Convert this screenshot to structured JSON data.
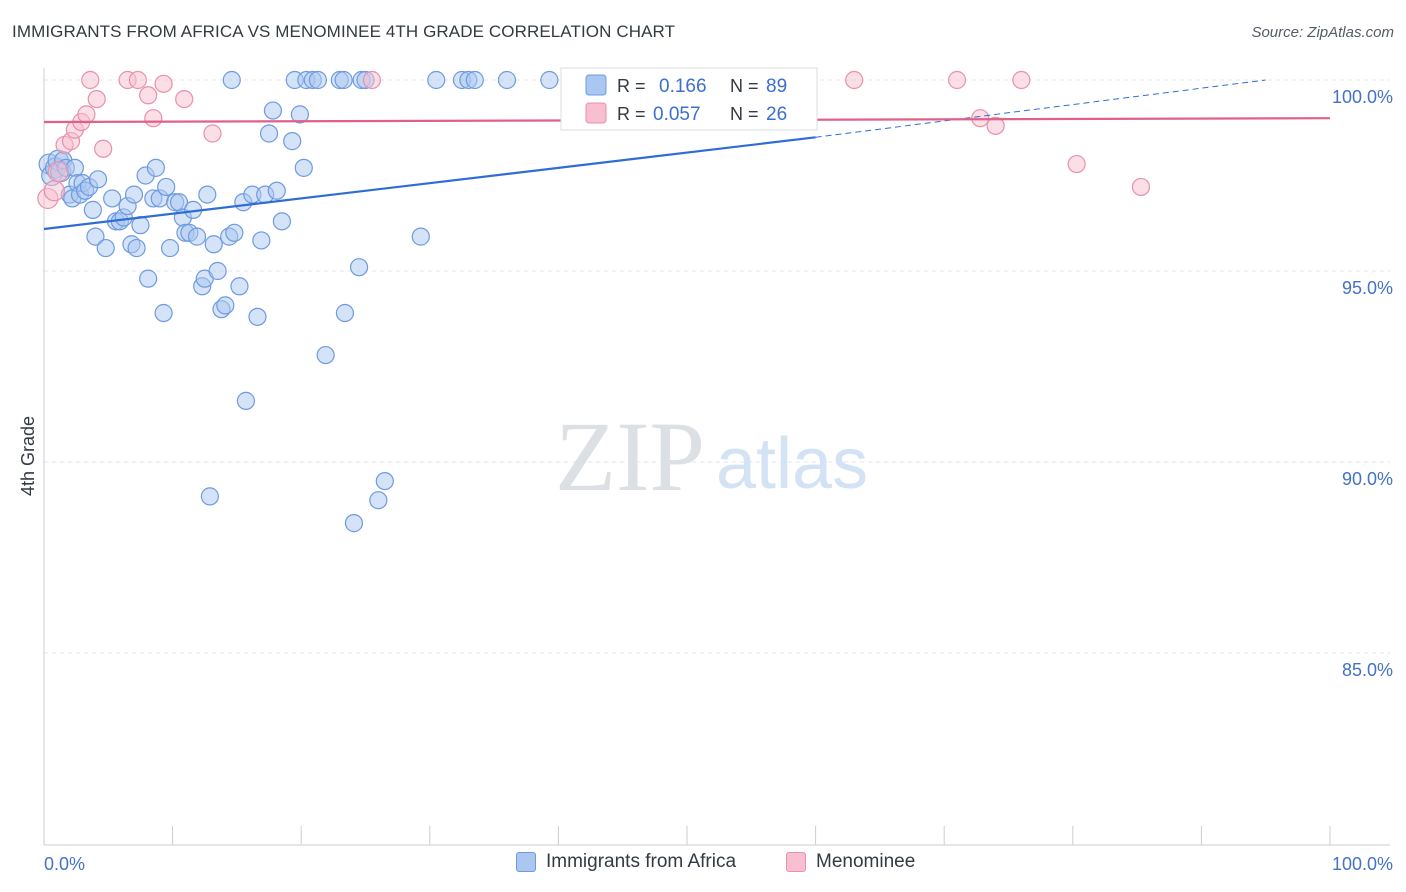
{
  "header": {
    "title": "IMMIGRANTS FROM AFRICA VS MENOMINEE 4TH GRADE CORRELATION CHART",
    "source": "Source: ZipAtlas.com"
  },
  "watermark": {
    "zip": "ZIP",
    "atlas": "atlas"
  },
  "colors": {
    "blue_fill": "#a9c7f0",
    "blue_stroke": "#6f9ae0",
    "blue_line": "#2e6ed4",
    "pink_fill": "#f7bfd0",
    "pink_stroke": "#ea8fac",
    "pink_line": "#e0608a",
    "label_blue": "#4472c4",
    "grid": "#e3e6ea"
  },
  "chart_data": {
    "type": "scatter",
    "title": "IMMIGRANTS FROM AFRICA VS MENOMINEE 4TH GRADE CORRELATION CHART",
    "xlabel": "",
    "ylabel": "4th Grade",
    "xlim": [
      0,
      100
    ],
    "ylim": [
      80.5,
      101.0
    ],
    "x_tick_labels": [
      "0.0%",
      "100.0%"
    ],
    "y_ticks": [
      100,
      95,
      90,
      85
    ],
    "y_tick_labels": [
      "100.0%",
      "95.0%",
      "90.0%",
      "85.0%"
    ],
    "legend": [
      {
        "name": "Immigrants from Africa",
        "r_label": "R =",
        "r": "0.166",
        "n_label": "N =",
        "n": "89"
      },
      {
        "name": "Menominee",
        "r_label": "R =",
        "r": "0.057",
        "n_label": "N =",
        "n": "26"
      }
    ],
    "series": [
      {
        "name": "Immigrants from Africa",
        "trend": {
          "x0": 0,
          "y0": 96.1,
          "x1": 60,
          "y1": 98.5,
          "dash_to": 95,
          "dash_y": 100.0
        },
        "points": [
          [
            0.4,
            97.8
          ],
          [
            0.6,
            97.5
          ],
          [
            0.9,
            97.7
          ],
          [
            1.1,
            97.9
          ],
          [
            1.3,
            97.6
          ],
          [
            1.5,
            97.9
          ],
          [
            1.7,
            97.7
          ],
          [
            2.0,
            97.0
          ],
          [
            2.2,
            96.9
          ],
          [
            2.4,
            97.7
          ],
          [
            2.6,
            97.3
          ],
          [
            2.8,
            97.0
          ],
          [
            3.0,
            97.3
          ],
          [
            3.2,
            97.1
          ],
          [
            3.5,
            97.2
          ],
          [
            3.8,
            96.6
          ],
          [
            4.0,
            95.9
          ],
          [
            4.2,
            97.4
          ],
          [
            4.8,
            95.6
          ],
          [
            5.3,
            96.9
          ],
          [
            5.6,
            96.3
          ],
          [
            5.9,
            96.3
          ],
          [
            6.2,
            96.4
          ],
          [
            6.5,
            96.7
          ],
          [
            6.8,
            95.7
          ],
          [
            7.0,
            97.0
          ],
          [
            7.2,
            95.6
          ],
          [
            7.5,
            96.2
          ],
          [
            7.9,
            97.5
          ],
          [
            8.1,
            94.8
          ],
          [
            8.5,
            96.9
          ],
          [
            8.7,
            97.7
          ],
          [
            9.0,
            96.9
          ],
          [
            9.3,
            93.9
          ],
          [
            9.5,
            97.2
          ],
          [
            9.8,
            95.6
          ],
          [
            10.2,
            96.8
          ],
          [
            10.5,
            96.8
          ],
          [
            10.8,
            96.4
          ],
          [
            11.0,
            96.0
          ],
          [
            11.3,
            96.0
          ],
          [
            11.6,
            96.6
          ],
          [
            11.9,
            95.9
          ],
          [
            12.3,
            94.6
          ],
          [
            12.5,
            94.8
          ],
          [
            12.7,
            97.0
          ],
          [
            12.9,
            89.1
          ],
          [
            13.2,
            95.7
          ],
          [
            13.5,
            95.0
          ],
          [
            13.8,
            94.0
          ],
          [
            14.1,
            94.1
          ],
          [
            14.4,
            95.9
          ],
          [
            14.6,
            100.0
          ],
          [
            14.8,
            96.0
          ],
          [
            15.2,
            94.6
          ],
          [
            15.5,
            96.8
          ],
          [
            15.7,
            91.6
          ],
          [
            16.2,
            97.0
          ],
          [
            16.6,
            93.8
          ],
          [
            16.9,
            95.8
          ],
          [
            17.2,
            97.0
          ],
          [
            17.5,
            98.6
          ],
          [
            17.8,
            99.2
          ],
          [
            18.1,
            97.1
          ],
          [
            18.5,
            96.3
          ],
          [
            19.3,
            98.4
          ],
          [
            19.5,
            100.0
          ],
          [
            19.9,
            99.1
          ],
          [
            20.2,
            97.7
          ],
          [
            20.4,
            100.0
          ],
          [
            20.9,
            100.0
          ],
          [
            21.3,
            100.0
          ],
          [
            21.9,
            92.8
          ],
          [
            23.0,
            100.0
          ],
          [
            23.3,
            100.0
          ],
          [
            23.4,
            93.9
          ],
          [
            24.1,
            88.4
          ],
          [
            24.5,
            95.1
          ],
          [
            24.7,
            100.0
          ],
          [
            25.0,
            100.0
          ],
          [
            26.0,
            89.0
          ],
          [
            26.5,
            89.5
          ],
          [
            29.3,
            95.9
          ],
          [
            30.5,
            100.0
          ],
          [
            32.5,
            100.0
          ],
          [
            33.0,
            100.0
          ],
          [
            33.5,
            100.0
          ],
          [
            36.0,
            100.0
          ],
          [
            39.3,
            100.0
          ]
        ]
      },
      {
        "name": "Menominee",
        "trend": {
          "x0": 0,
          "y0": 98.9,
          "x1": 100,
          "y1": 99.0
        },
        "points": [
          [
            0.3,
            96.9
          ],
          [
            0.8,
            97.1
          ],
          [
            1.1,
            97.6
          ],
          [
            1.6,
            98.3
          ],
          [
            2.1,
            98.4
          ],
          [
            2.4,
            98.7
          ],
          [
            2.9,
            98.9
          ],
          [
            3.3,
            99.1
          ],
          [
            3.6,
            100.0
          ],
          [
            4.1,
            99.5
          ],
          [
            4.6,
            98.2
          ],
          [
            6.5,
            100.0
          ],
          [
            7.3,
            100.0
          ],
          [
            8.1,
            99.6
          ],
          [
            8.5,
            99.0
          ],
          [
            9.3,
            99.9
          ],
          [
            10.9,
            99.5
          ],
          [
            13.1,
            98.6
          ],
          [
            25.5,
            100.0
          ],
          [
            63.0,
            100.0
          ],
          [
            71.0,
            100.0
          ],
          [
            72.8,
            99.0
          ],
          [
            74.0,
            98.8
          ],
          [
            76.0,
            100.0
          ],
          [
            80.3,
            97.8
          ],
          [
            85.3,
            97.2
          ]
        ]
      }
    ]
  }
}
